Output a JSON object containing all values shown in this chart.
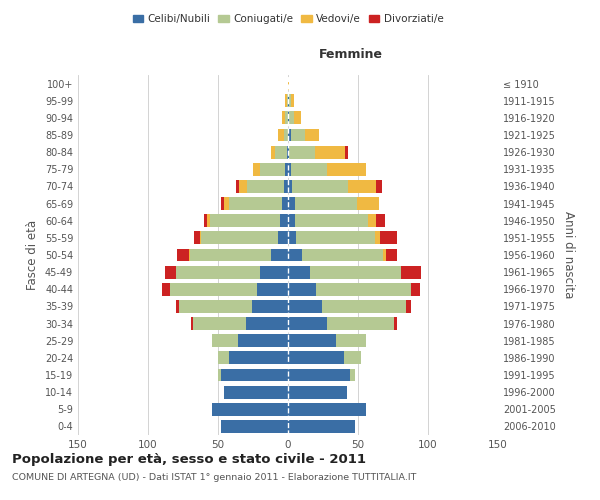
{
  "age_groups": [
    "0-4",
    "5-9",
    "10-14",
    "15-19",
    "20-24",
    "25-29",
    "30-34",
    "35-39",
    "40-44",
    "45-49",
    "50-54",
    "55-59",
    "60-64",
    "65-69",
    "70-74",
    "75-79",
    "80-84",
    "85-89",
    "90-94",
    "95-99",
    "100+"
  ],
  "birth_years": [
    "2006-2010",
    "2001-2005",
    "1996-2000",
    "1991-1995",
    "1986-1990",
    "1981-1985",
    "1976-1980",
    "1971-1975",
    "1966-1970",
    "1961-1965",
    "1956-1960",
    "1951-1955",
    "1946-1950",
    "1941-1945",
    "1936-1940",
    "1931-1935",
    "1926-1930",
    "1921-1925",
    "1916-1920",
    "1911-1915",
    "≤ 1910"
  ],
  "males": {
    "celibe": [
      48,
      54,
      46,
      48,
      42,
      36,
      30,
      26,
      22,
      20,
      12,
      7,
      6,
      4,
      3,
      2,
      1,
      0,
      0,
      0,
      0
    ],
    "coniugato": [
      0,
      0,
      0,
      2,
      8,
      18,
      38,
      52,
      62,
      60,
      58,
      55,
      50,
      38,
      26,
      18,
      8,
      3,
      2,
      1,
      0
    ],
    "vedovo": [
      0,
      0,
      0,
      0,
      0,
      0,
      0,
      0,
      0,
      0,
      1,
      1,
      2,
      4,
      6,
      5,
      3,
      4,
      2,
      1,
      0
    ],
    "divorziato": [
      0,
      0,
      0,
      0,
      0,
      0,
      1,
      2,
      6,
      8,
      8,
      4,
      2,
      2,
      2,
      0,
      0,
      0,
      0,
      0,
      0
    ]
  },
  "females": {
    "nubile": [
      48,
      56,
      42,
      44,
      40,
      34,
      28,
      24,
      20,
      16,
      10,
      6,
      5,
      5,
      3,
      2,
      1,
      2,
      1,
      1,
      0
    ],
    "coniugata": [
      0,
      0,
      0,
      4,
      12,
      22,
      48,
      60,
      68,
      65,
      58,
      56,
      52,
      44,
      40,
      26,
      18,
      10,
      3,
      1,
      0
    ],
    "vedova": [
      0,
      0,
      0,
      0,
      0,
      0,
      0,
      0,
      0,
      0,
      2,
      4,
      6,
      16,
      20,
      28,
      22,
      10,
      5,
      2,
      1
    ],
    "divorziata": [
      0,
      0,
      0,
      0,
      0,
      0,
      2,
      4,
      6,
      14,
      8,
      12,
      6,
      0,
      4,
      0,
      2,
      0,
      0,
      0,
      0
    ]
  },
  "colors": {
    "celibe": "#3a6ea5",
    "coniugato": "#b5c993",
    "vedovo": "#f0b942",
    "divorziato": "#cc2222"
  },
  "xlim": 150,
  "title": "Popolazione per età, sesso e stato civile - 2011",
  "subtitle": "COMUNE DI ARTEGNA (UD) - Dati ISTAT 1° gennaio 2011 - Elaborazione TUTTITALIA.IT",
  "ylabel_left": "Fasce di età",
  "ylabel_right": "Anni di nascita",
  "xlabel_right": "Femmine",
  "bg_color": "#ffffff",
  "grid_color": "#cccccc"
}
